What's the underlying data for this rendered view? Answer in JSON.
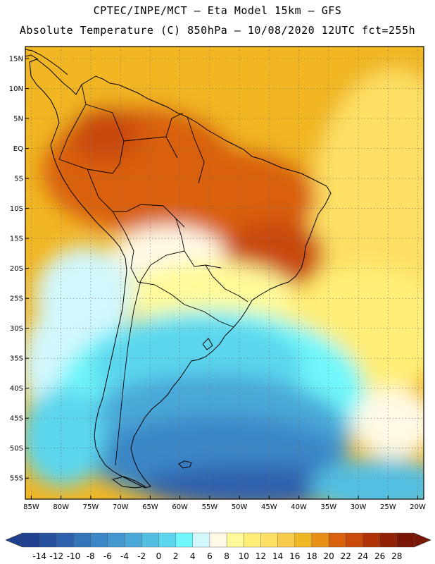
{
  "title": {
    "line1": "CPTEC/INPE/MCT —  Eta Model 15km — GFS",
    "line2": "Absolute Temperature (C) 850hPa — 10/08/2020 12UTC fct=255h"
  },
  "map": {
    "lon_range": [
      -86,
      -19
    ],
    "lat_range": [
      -58.5,
      17
    ],
    "lat_ticks": [
      {
        "value": 15,
        "label": "15N"
      },
      {
        "value": 10,
        "label": "10N"
      },
      {
        "value": 5,
        "label": "5N"
      },
      {
        "value": 0,
        "label": "EQ"
      },
      {
        "value": -5,
        "label": "5S"
      },
      {
        "value": -10,
        "label": "10S"
      },
      {
        "value": -15,
        "label": "15S"
      },
      {
        "value": -20,
        "label": "20S"
      },
      {
        "value": -25,
        "label": "25S"
      },
      {
        "value": -30,
        "label": "30S"
      },
      {
        "value": -35,
        "label": "35S"
      },
      {
        "value": -40,
        "label": "40S"
      },
      {
        "value": -45,
        "label": "45S"
      },
      {
        "value": -50,
        "label": "50S"
      },
      {
        "value": -55,
        "label": "55S"
      }
    ],
    "lon_ticks": [
      {
        "value": -85,
        "label": "85W"
      },
      {
        "value": -80,
        "label": "80W"
      },
      {
        "value": -75,
        "label": "75W"
      },
      {
        "value": -70,
        "label": "70W"
      },
      {
        "value": -65,
        "label": "65W"
      },
      {
        "value": -60,
        "label": "60W"
      },
      {
        "value": -55,
        "label": "55W"
      },
      {
        "value": -50,
        "label": "50W"
      },
      {
        "value": -45,
        "label": "45W"
      },
      {
        "value": -40,
        "label": "40W"
      },
      {
        "value": -35,
        "label": "35W"
      },
      {
        "value": -30,
        "label": "30W"
      },
      {
        "value": -25,
        "label": "25W"
      },
      {
        "value": -20,
        "label": "20W"
      }
    ],
    "grid": "dotted",
    "variable": "temperature_850hPa_C"
  },
  "colorbar": {
    "levels": [
      -14,
      -12,
      -10,
      -8,
      -6,
      -4,
      -2,
      0,
      2,
      4,
      6,
      8,
      10,
      12,
      14,
      16,
      18,
      20,
      22,
      24,
      26,
      28
    ],
    "colors": [
      "#1f3f8f",
      "#27509e",
      "#2d60ad",
      "#3474bb",
      "#3b86c6",
      "#4398cf",
      "#4aa8d8",
      "#52bfe2",
      "#5cd6ee",
      "#6ff7fb",
      "#d2f7fc",
      "#fff9e6",
      "#fffa99",
      "#ffef78",
      "#fde063",
      "#f8cc4a",
      "#f1b624",
      "#e88f16",
      "#d9610d",
      "#c94a0b",
      "#b03408",
      "#912206",
      "#7a1605"
    ],
    "under_color": "#1f3f8f",
    "over_color": "#7a1605"
  }
}
